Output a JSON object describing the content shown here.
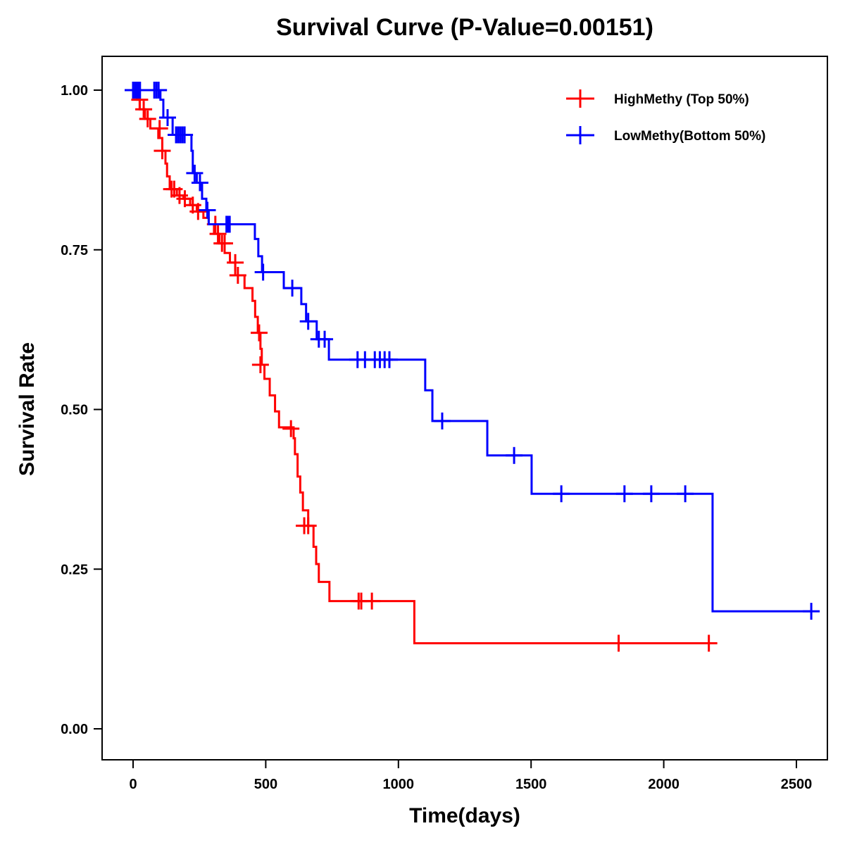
{
  "chart_data": {
    "type": "line",
    "subtype": "kaplan-meier step",
    "title": "Survival Curve (P-Value=0.00151)",
    "xlabel": "Time(days)",
    "ylabel": "Survival Rate",
    "xlim": [
      -110,
      2610
    ],
    "ylim": [
      -0.05,
      1.05
    ],
    "xticks": [
      0,
      500,
      1000,
      1500,
      2000,
      2500
    ],
    "xtick_labels": [
      "0",
      "500",
      "1000",
      "1500",
      "2000",
      "2500"
    ],
    "yticks": [
      0,
      0.25,
      0.5,
      0.75,
      1.0
    ],
    "ytick_labels": [
      "0.00",
      "0.25",
      "0.50",
      "0.75",
      "1.00"
    ],
    "grid": false,
    "legend_position": "top-right",
    "series": [
      {
        "name": "HighMethy (Top 50%)",
        "color": "#ff0000",
        "steps": [
          [
            0,
            1.0
          ],
          [
            15,
            0.985
          ],
          [
            25,
            0.97
          ],
          [
            45,
            0.955
          ],
          [
            65,
            0.94
          ],
          [
            95,
            0.925
          ],
          [
            110,
            0.905
          ],
          [
            122,
            0.885
          ],
          [
            128,
            0.865
          ],
          [
            138,
            0.845
          ],
          [
            165,
            0.835
          ],
          [
            190,
            0.83
          ],
          [
            215,
            0.82
          ],
          [
            240,
            0.81
          ],
          [
            265,
            0.8
          ],
          [
            285,
            0.79
          ],
          [
            305,
            0.775
          ],
          [
            325,
            0.76
          ],
          [
            345,
            0.745
          ],
          [
            365,
            0.73
          ],
          [
            385,
            0.71
          ],
          [
            420,
            0.69
          ],
          [
            450,
            0.67
          ],
          [
            460,
            0.645
          ],
          [
            470,
            0.62
          ],
          [
            480,
            0.595
          ],
          [
            485,
            0.57
          ],
          [
            495,
            0.548
          ],
          [
            515,
            0.522
          ],
          [
            535,
            0.497
          ],
          [
            550,
            0.472
          ],
          [
            605,
            0.455
          ],
          [
            610,
            0.43
          ],
          [
            620,
            0.395
          ],
          [
            630,
            0.37
          ],
          [
            640,
            0.342
          ],
          [
            660,
            0.318
          ],
          [
            680,
            0.285
          ],
          [
            690,
            0.258
          ],
          [
            700,
            0.23
          ],
          [
            740,
            0.2
          ],
          [
            1060,
            0.134
          ]
        ],
        "end_time": 2185,
        "censored": [
          [
            25,
            0.985
          ],
          [
            40,
            0.97
          ],
          [
            55,
            0.955
          ],
          [
            100,
            0.94
          ],
          [
            110,
            0.905
          ],
          [
            145,
            0.845
          ],
          [
            155,
            0.845
          ],
          [
            175,
            0.835
          ],
          [
            195,
            0.83
          ],
          [
            225,
            0.82
          ],
          [
            245,
            0.81
          ],
          [
            310,
            0.79
          ],
          [
            320,
            0.775
          ],
          [
            335,
            0.76
          ],
          [
            345,
            0.76
          ],
          [
            385,
            0.73
          ],
          [
            395,
            0.71
          ],
          [
            475,
            0.62
          ],
          [
            480,
            0.57
          ],
          [
            595,
            0.47
          ],
          [
            645,
            0.318
          ],
          [
            660,
            0.318
          ],
          [
            850,
            0.2
          ],
          [
            860,
            0.2
          ],
          [
            900,
            0.2
          ],
          [
            1830,
            0.134
          ],
          [
            2170,
            0.134
          ]
        ]
      },
      {
        "name": "LowMethy(Bottom 50%)",
        "color": "#0000ff",
        "steps": [
          [
            0,
            1.0
          ],
          [
            103,
            0.985
          ],
          [
            114,
            0.957
          ],
          [
            149,
            0.93
          ],
          [
            220,
            0.905
          ],
          [
            225,
            0.87
          ],
          [
            240,
            0.855
          ],
          [
            260,
            0.83
          ],
          [
            276,
            0.812
          ],
          [
            285,
            0.79
          ],
          [
            459,
            0.767
          ],
          [
            472,
            0.74
          ],
          [
            486,
            0.715
          ],
          [
            568,
            0.69
          ],
          [
            634,
            0.665
          ],
          [
            652,
            0.638
          ],
          [
            692,
            0.61
          ],
          [
            738,
            0.578
          ],
          [
            1101,
            0.53
          ],
          [
            1128,
            0.482
          ],
          [
            1335,
            0.428
          ],
          [
            1502,
            0.368
          ],
          [
            2184,
            0.184
          ]
        ],
        "end_time": 2560,
        "censored": [
          [
            0,
            1.0
          ],
          [
            8,
            1.0
          ],
          [
            14,
            1.0
          ],
          [
            20,
            1.0
          ],
          [
            26,
            1.0
          ],
          [
            80,
            1.0
          ],
          [
            88,
            1.0
          ],
          [
            96,
            1.0
          ],
          [
            130,
            0.957
          ],
          [
            162,
            0.93
          ],
          [
            170,
            0.93
          ],
          [
            178,
            0.93
          ],
          [
            186,
            0.93
          ],
          [
            194,
            0.93
          ],
          [
            232,
            0.87
          ],
          [
            252,
            0.855
          ],
          [
            280,
            0.812
          ],
          [
            352,
            0.79
          ],
          [
            358,
            0.79
          ],
          [
            364,
            0.79
          ],
          [
            490,
            0.715
          ],
          [
            600,
            0.69
          ],
          [
            660,
            0.638
          ],
          [
            700,
            0.61
          ],
          [
            722,
            0.61
          ],
          [
            846,
            0.578
          ],
          [
            874,
            0.578
          ],
          [
            911,
            0.578
          ],
          [
            930,
            0.578
          ],
          [
            948,
            0.578
          ],
          [
            966,
            0.578
          ],
          [
            1165,
            0.482
          ],
          [
            1436,
            0.428
          ],
          [
            1614,
            0.368
          ],
          [
            1852,
            0.368
          ],
          [
            1953,
            0.368
          ],
          [
            2081,
            0.368
          ],
          [
            2556,
            0.184
          ]
        ]
      }
    ]
  }
}
